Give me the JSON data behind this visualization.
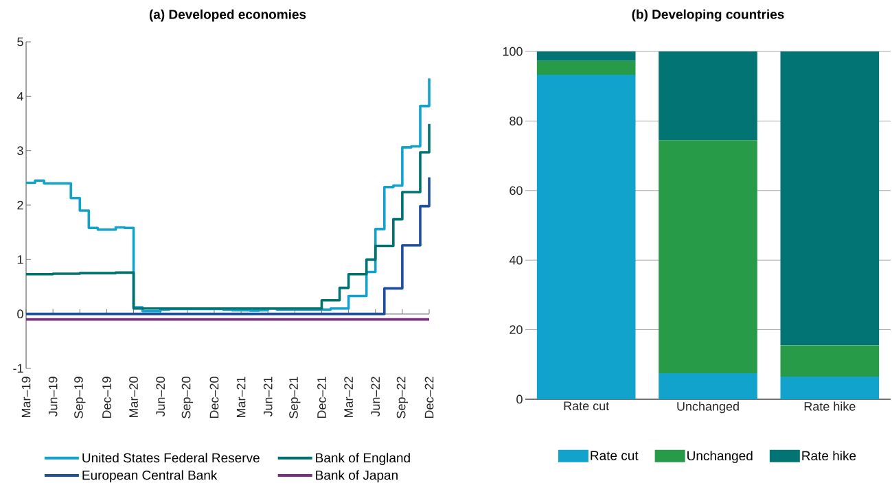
{
  "chart_data": [
    {
      "type": "step",
      "title": "(a)  Developed economies",
      "x": [
        "2019-03",
        "2019-04",
        "2019-05",
        "2019-06",
        "2019-07",
        "2019-08",
        "2019-09",
        "2019-10",
        "2019-11",
        "2019-12",
        "2020-01",
        "2020-02",
        "2020-03",
        "2020-04",
        "2020-05",
        "2020-06",
        "2020-07",
        "2020-08",
        "2020-09",
        "2020-10",
        "2020-11",
        "2020-12",
        "2021-01",
        "2021-02",
        "2021-03",
        "2021-04",
        "2021-05",
        "2021-06",
        "2021-07",
        "2021-08",
        "2021-09",
        "2021-10",
        "2021-11",
        "2021-12",
        "2022-01",
        "2022-02",
        "2022-03",
        "2022-04",
        "2022-05",
        "2022-06",
        "2022-07",
        "2022-08",
        "2022-09",
        "2022-10",
        "2022-11",
        "2022-12"
      ],
      "xlim": [
        "2019-03",
        "2022-12"
      ],
      "xticks": [
        {
          "value": "2019-03",
          "label": "Mar–19"
        },
        {
          "value": "2019-06",
          "label": "Jun–19"
        },
        {
          "value": "2019-09",
          "label": "Sep–19"
        },
        {
          "value": "2019-12",
          "label": "Dec–19"
        },
        {
          "value": "2020-03",
          "label": "Mar–20"
        },
        {
          "value": "2020-06",
          "label": "Jun–20"
        },
        {
          "value": "2020-09",
          "label": "Sep–20"
        },
        {
          "value": "2020-12",
          "label": "Dec–20"
        },
        {
          "value": "2021-03",
          "label": "Mar–21"
        },
        {
          "value": "2021-06",
          "label": "Jun–21"
        },
        {
          "value": "2021-09",
          "label": "Sep–21"
        },
        {
          "value": "2021-12",
          "label": "Dec–21"
        },
        {
          "value": "2022-03",
          "label": "Mar–22"
        },
        {
          "value": "2022-06",
          "label": "Jun–22"
        },
        {
          "value": "2022-09",
          "label": "Sep–22"
        },
        {
          "value": "2022-12",
          "label": "Dec–22"
        }
      ],
      "ylim": [
        -1,
        5
      ],
      "yticks": [
        -1,
        0,
        1,
        2,
        3,
        4,
        5
      ],
      "legend": "bottom",
      "ref_lines": [
        {
          "axis": "y",
          "value": 0,
          "color": "#8c8c8c"
        }
      ],
      "series": [
        {
          "name": "United States Federal Reserve",
          "color": "#12a3cc",
          "values": [
            2.41,
            2.45,
            2.4,
            2.4,
            2.4,
            2.13,
            1.9,
            1.58,
            1.55,
            1.55,
            1.59,
            1.58,
            0.12,
            0.05,
            0.05,
            0.08,
            0.09,
            0.09,
            0.09,
            0.09,
            0.09,
            0.09,
            0.08,
            0.07,
            0.07,
            0.06,
            0.07,
            0.1,
            0.08,
            0.08,
            0.08,
            0.08,
            0.08,
            0.08,
            0.1,
            0.1,
            0.33,
            0.33,
            0.77,
            1.56,
            2.33,
            2.36,
            3.06,
            3.08,
            3.82,
            4.33
          ]
        },
        {
          "name": "Bank of England",
          "color": "#00726f",
          "values": [
            0.73,
            0.73,
            0.73,
            0.74,
            0.74,
            0.74,
            0.75,
            0.75,
            0.75,
            0.75,
            0.76,
            0.76,
            0.1,
            0.1,
            0.1,
            0.1,
            0.1,
            0.1,
            0.1,
            0.1,
            0.1,
            0.1,
            0.1,
            0.1,
            0.1,
            0.1,
            0.1,
            0.1,
            0.1,
            0.1,
            0.1,
            0.1,
            0.1,
            0.25,
            0.25,
            0.48,
            0.73,
            0.73,
            1.0,
            1.25,
            1.25,
            1.74,
            2.24,
            2.24,
            2.97,
            3.49
          ]
        },
        {
          "name": "European Central Bank",
          "color": "#1f4e9c",
          "values": [
            0,
            0,
            0,
            0,
            0,
            0,
            0,
            0,
            0,
            0,
            0,
            0,
            0,
            0,
            0,
            0,
            0,
            0,
            0,
            0,
            0,
            0,
            0,
            0,
            0,
            0,
            0,
            0,
            0,
            0,
            0,
            0,
            0,
            0,
            0,
            0,
            0,
            0,
            0,
            0,
            0.47,
            0.47,
            1.26,
            1.26,
            1.98,
            2.51
          ]
        },
        {
          "name": "Bank of Japan",
          "color": "#7b2d7f",
          "values": [
            -0.1,
            -0.1,
            -0.1,
            -0.1,
            -0.1,
            -0.1,
            -0.1,
            -0.1,
            -0.1,
            -0.1,
            -0.1,
            -0.1,
            -0.1,
            -0.1,
            -0.1,
            -0.1,
            -0.1,
            -0.1,
            -0.1,
            -0.1,
            -0.1,
            -0.1,
            -0.1,
            -0.1,
            -0.1,
            -0.1,
            -0.1,
            -0.1,
            -0.1,
            -0.1,
            -0.1,
            -0.1,
            -0.1,
            -0.1,
            -0.1,
            -0.1,
            -0.1,
            -0.1,
            -0.1,
            -0.1,
            -0.1,
            -0.1,
            -0.1,
            -0.1,
            -0.1,
            -0.1
          ]
        }
      ]
    },
    {
      "type": "bar",
      "title": "(b) Developing countries",
      "categories": [
        "Rate cut",
        "Unchanged",
        "Rate hike"
      ],
      "stacked": true,
      "ylim": [
        0,
        100
      ],
      "yticks": [
        0,
        20,
        40,
        60,
        80,
        100
      ],
      "grid": "y",
      "legend": "bottom",
      "series": [
        {
          "name": "Rate cut",
          "color": "#12a3cc",
          "values": [
            93.3,
            7.5,
            6.5
          ]
        },
        {
          "name": "Unchanged",
          "color": "#289b48",
          "values": [
            4,
            67,
            9
          ]
        },
        {
          "name": "Rate hike",
          "color": "#027474",
          "values": [
            2.7,
            25.5,
            84.5
          ]
        }
      ]
    }
  ]
}
